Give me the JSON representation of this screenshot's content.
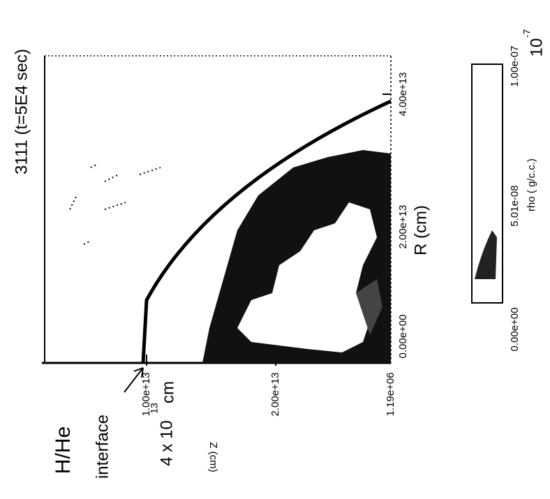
{
  "title": "3111 (t=5E4 sec)",
  "r_axis": {
    "label": "R (cm)",
    "ticks": [
      "0.00e+00",
      "2.00e+13",
      "4.00e+13"
    ]
  },
  "z_axis": {
    "label": "Z (cm)",
    "ticks": [
      "1.00e+13",
      "2.00e+13",
      "1.19e+06"
    ]
  },
  "colorbar": {
    "label": "rho ( g/c.c.)",
    "ticks": [
      "0.00e+00",
      "5.01e-08",
      "1.00e-07"
    ],
    "scale_base": "10",
    "scale_exponent": "-7"
  },
  "annotations": {
    "species": "H/He",
    "interface": "interface",
    "radius_base": "4 x 10",
    "radius_exponent": "13",
    "radius_unit": "cm"
  }
}
